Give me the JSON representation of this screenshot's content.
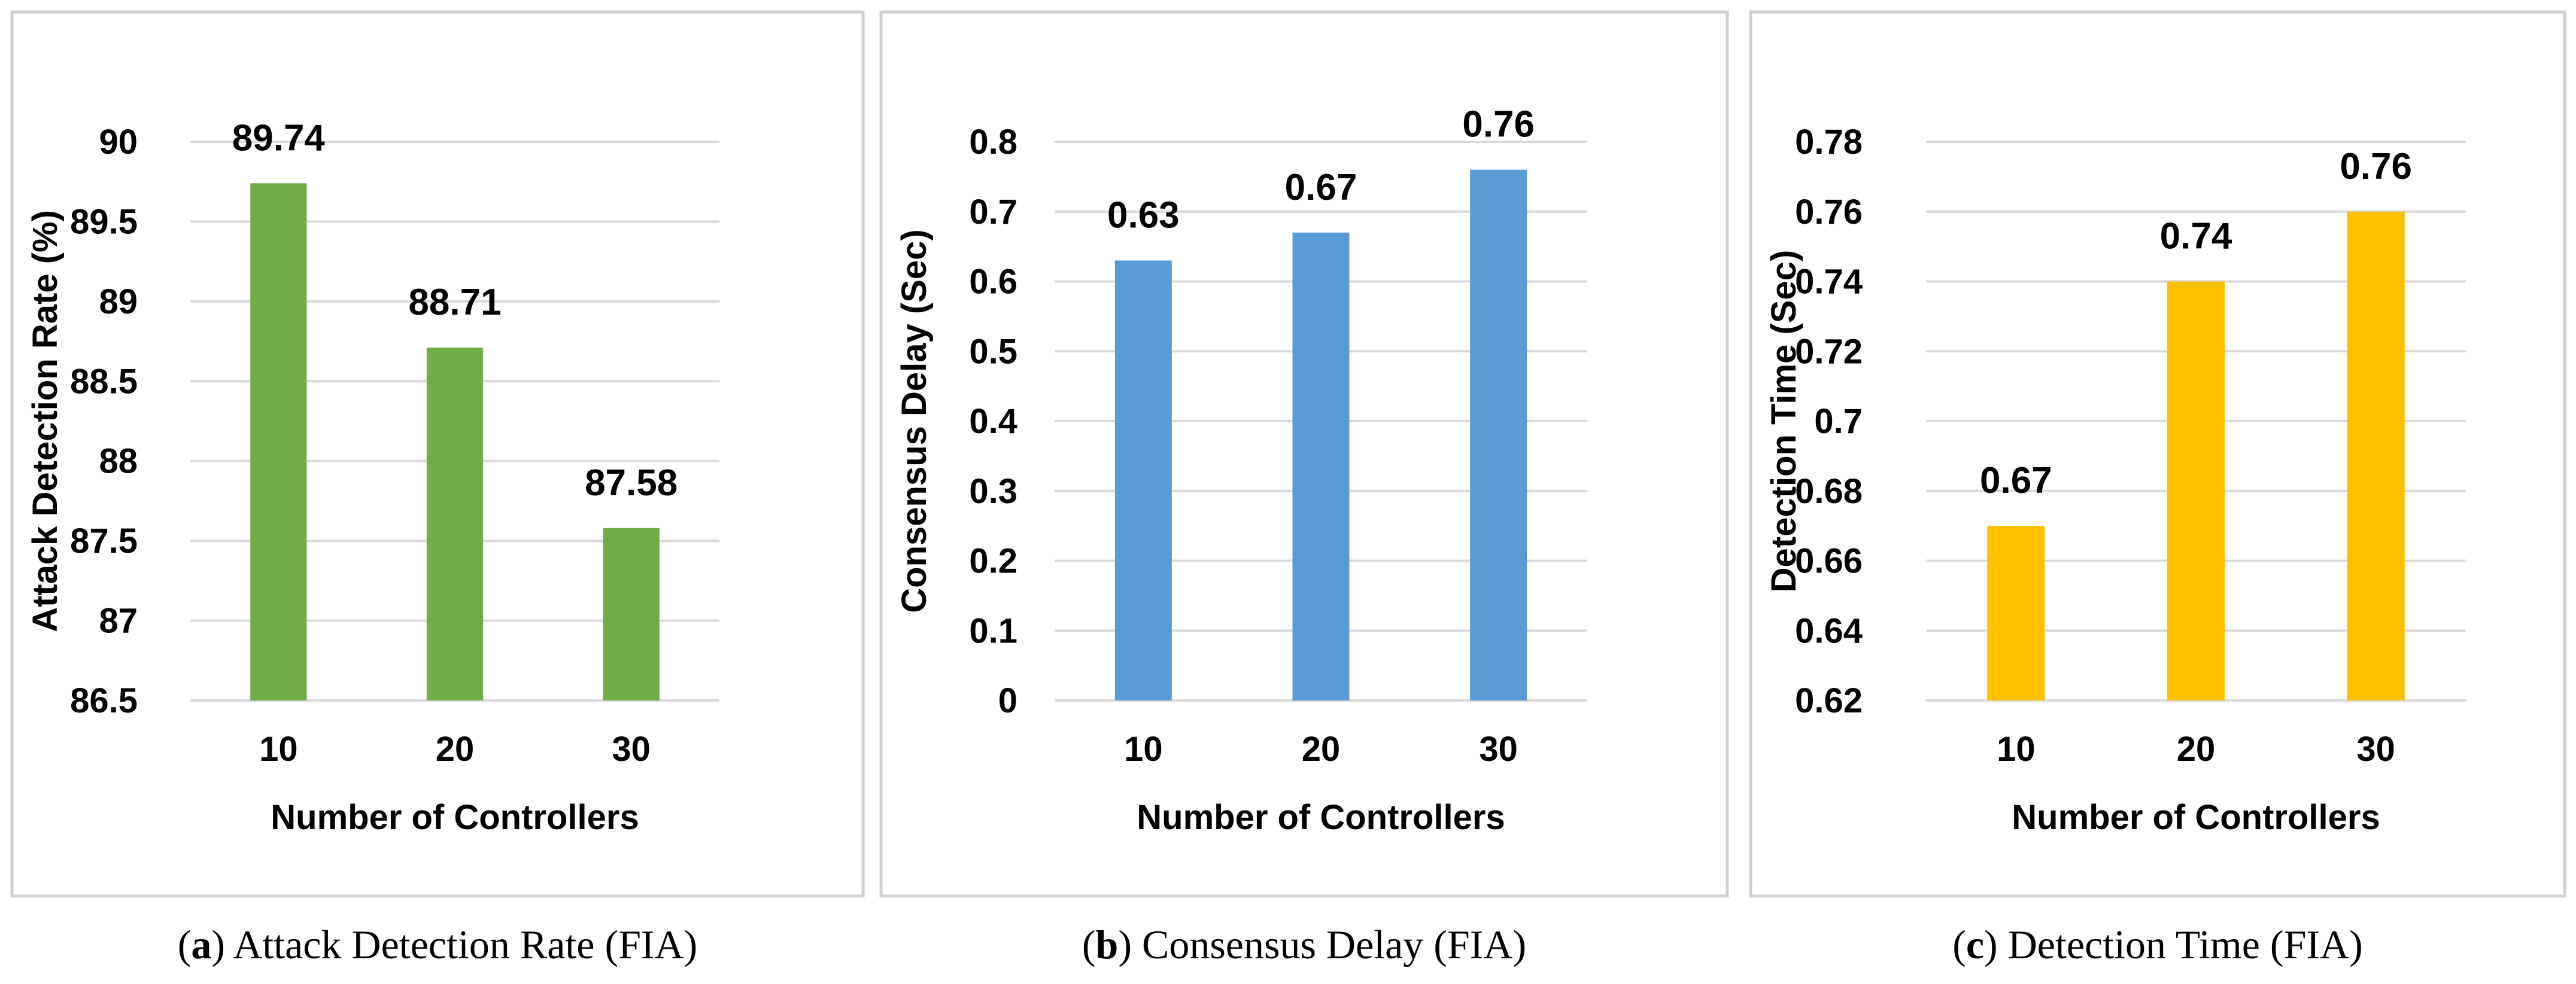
{
  "chart_data": [
    {
      "type": "bar",
      "panel": "a",
      "caption_label": "a",
      "caption_text": "Attack Detection Rate (FIA)",
      "title": "",
      "xlabel": "Number of Controllers",
      "ylabel": "Attack Detection Rate (%)",
      "categories": [
        "10",
        "20",
        "30"
      ],
      "values": [
        89.74,
        88.71,
        87.58
      ],
      "value_labels": [
        "89.74",
        "88.71",
        "87.58"
      ],
      "ylim": [
        86.5,
        90
      ],
      "yticks": [
        86.5,
        87,
        87.5,
        88,
        88.5,
        89,
        89.5,
        90
      ],
      "ytick_labels": [
        "86.5",
        "87",
        "87.5",
        "88",
        "88.5",
        "89",
        "89.5",
        "90"
      ],
      "color": "#70ad47",
      "grid": true,
      "legend": "none"
    },
    {
      "type": "bar",
      "panel": "b",
      "caption_label": "b",
      "caption_text": "Consensus Delay (FIA)",
      "title": "",
      "xlabel": "Number of Controllers",
      "ylabel": "Consensus Delay (Sec)",
      "categories": [
        "10",
        "20",
        "30"
      ],
      "values": [
        0.63,
        0.67,
        0.76
      ],
      "value_labels": [
        "0.63",
        "0.67",
        "0.76"
      ],
      "ylim": [
        0,
        0.8
      ],
      "yticks": [
        0,
        0.1,
        0.2,
        0.3,
        0.4,
        0.5,
        0.6,
        0.7,
        0.8
      ],
      "ytick_labels": [
        "0",
        "0.1",
        "0.2",
        "0.3",
        "0.4",
        "0.5",
        "0.6",
        "0.7",
        "0.8"
      ],
      "color": "#5b9bd5",
      "grid": true,
      "legend": "none"
    },
    {
      "type": "bar",
      "panel": "c",
      "caption_label": "c",
      "caption_text": "Detection Time (FIA)",
      "title": "",
      "xlabel": "Number of Controllers",
      "ylabel": "Detection Time (Sec)",
      "categories": [
        "10",
        "20",
        "30"
      ],
      "values": [
        0.67,
        0.74,
        0.76
      ],
      "value_labels": [
        "0.67",
        "0.74",
        "0.76"
      ],
      "ylim": [
        0.62,
        0.78
      ],
      "yticks": [
        0.62,
        0.64,
        0.66,
        0.68,
        0.7,
        0.72,
        0.74,
        0.76,
        0.78
      ],
      "ytick_labels": [
        "0.62",
        "0.64",
        "0.66",
        "0.68",
        "0.7",
        "0.72",
        "0.74",
        "0.76",
        "0.78"
      ],
      "color": "#ffc000",
      "grid": true,
      "legend": "none"
    }
  ]
}
